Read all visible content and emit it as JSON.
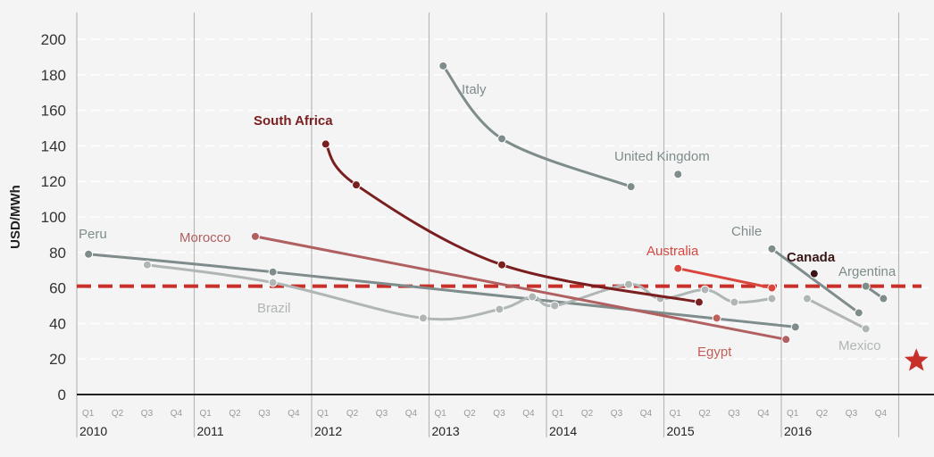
{
  "chart_data": {
    "type": "line",
    "title": "",
    "xlabel": "",
    "ylabel": "USD/MWh",
    "ylim": [
      0,
      200
    ],
    "yticks": [
      0,
      20,
      40,
      60,
      80,
      100,
      120,
      140,
      160,
      180,
      200
    ],
    "grid": true,
    "years": [
      "2010",
      "2011",
      "2012",
      "2013",
      "2014",
      "2015",
      "2016"
    ],
    "quarters": [
      "Q1",
      "Q2",
      "Q3",
      "Q4"
    ],
    "xlim": [
      2010.0,
      2017.2
    ],
    "reference_line": {
      "value": 61,
      "color": "#c8302a"
    },
    "marker": {
      "shape": "star",
      "x": 2017.15,
      "y": 19,
      "color": "#c8302a"
    },
    "series": [
      {
        "name": "Peru",
        "color": "#7f8c8c",
        "points": [
          [
            2010.1,
            79
          ],
          [
            2011.67,
            69
          ],
          [
            2016.12,
            38
          ]
        ]
      },
      {
        "name": "Brazil",
        "color": "#b0b5b5",
        "points": [
          [
            2010.6,
            73
          ],
          [
            2011.67,
            63
          ],
          [
            2012.95,
            43
          ],
          [
            2013.6,
            48
          ],
          [
            2013.88,
            55
          ],
          [
            2014.07,
            50
          ],
          [
            2014.7,
            62
          ],
          [
            2014.97,
            54
          ],
          [
            2015.35,
            59
          ],
          [
            2015.6,
            52
          ],
          [
            2015.92,
            54
          ]
        ]
      },
      {
        "name": "Italy",
        "color": "#7f8c8c",
        "points": [
          [
            2013.12,
            185
          ],
          [
            2013.62,
            144
          ],
          [
            2014.72,
            117
          ]
        ]
      },
      {
        "name": "United Kingdom",
        "color": "#7f8c8c",
        "points": [
          [
            2015.12,
            124
          ]
        ]
      },
      {
        "name": "South Africa",
        "color": "#7a1f1f",
        "points": [
          [
            2012.12,
            141
          ],
          [
            2012.38,
            118
          ],
          [
            2013.62,
            73
          ],
          [
            2015.3,
            52
          ]
        ]
      },
      {
        "name": "Morocco",
        "color": "#b06060",
        "points": [
          [
            2011.52,
            89
          ],
          [
            2016.04,
            31
          ]
        ]
      },
      {
        "name": "Australia",
        "color": "#d9463e",
        "points": [
          [
            2015.12,
            71
          ],
          [
            2015.92,
            60
          ]
        ]
      },
      {
        "name": "Egypt",
        "color": "#c0605a",
        "points": [
          [
            2015.45,
            43
          ]
        ]
      },
      {
        "name": "Chile",
        "color": "#7f8c8c",
        "points": [
          [
            2015.92,
            82
          ],
          [
            2016.66,
            46
          ]
        ]
      },
      {
        "name": "Canada",
        "color": "#3a1515",
        "points": [
          [
            2016.28,
            68
          ]
        ]
      },
      {
        "name": "Mexico",
        "color": "#b0b5b5",
        "points": [
          [
            2016.22,
            54
          ],
          [
            2016.72,
            37
          ]
        ]
      },
      {
        "name": "Argentina",
        "color": "#7f8c8c",
        "points": [
          [
            2016.72,
            61
          ],
          [
            2016.87,
            54
          ]
        ]
      }
    ]
  }
}
